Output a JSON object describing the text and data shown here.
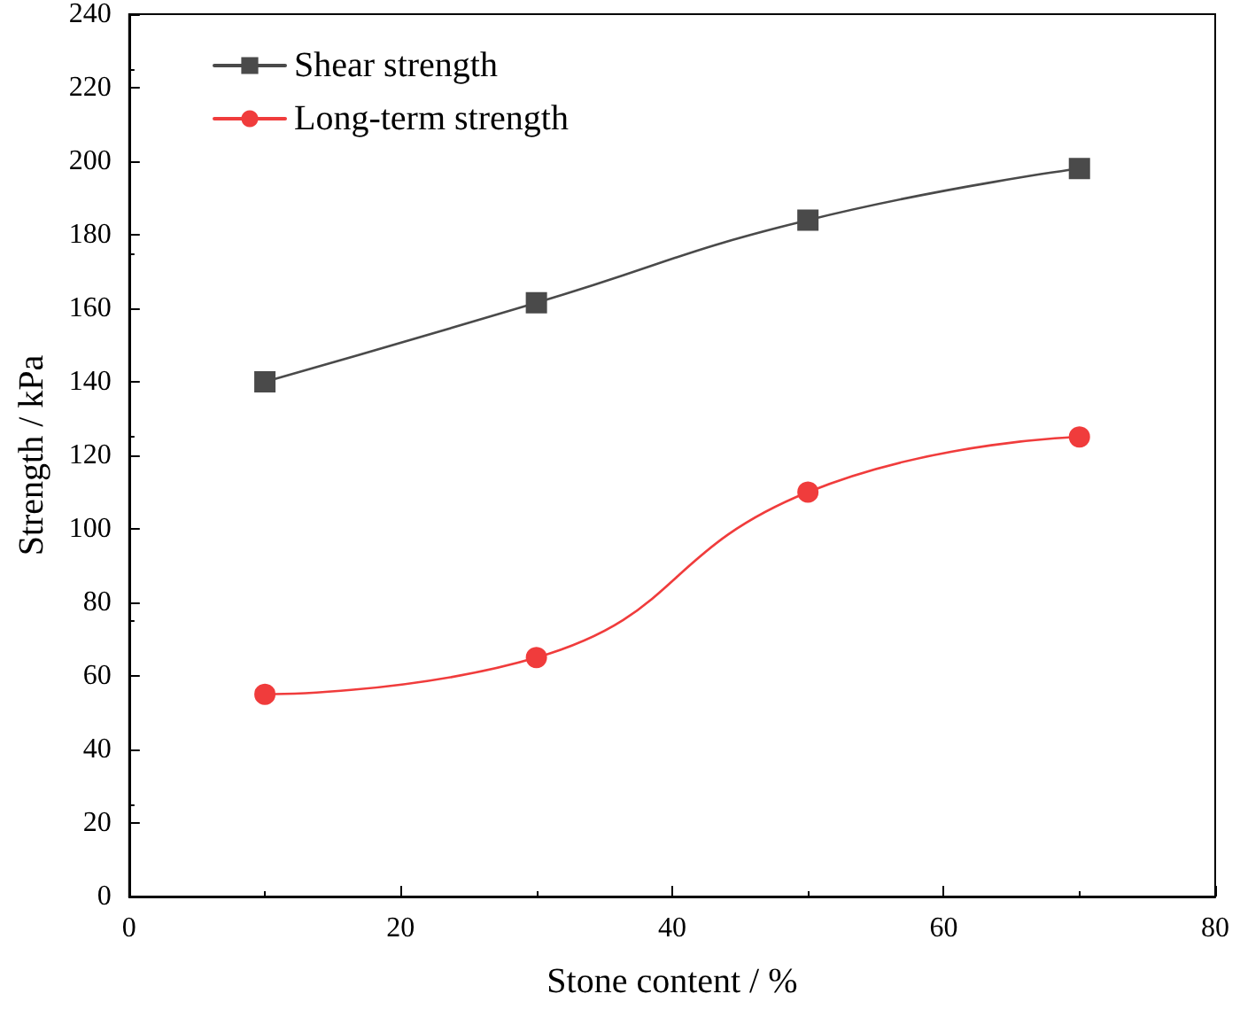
{
  "chart_data": {
    "type": "line",
    "xlabel": "Stone content / %",
    "ylabel": "Strength / kPa",
    "x": [
      10,
      30,
      50,
      70
    ],
    "series": [
      {
        "name": "Shear strength",
        "color": "#4a4a4a",
        "marker": "square",
        "values": [
          140,
          161.5,
          184,
          198
        ]
      },
      {
        "name": "Long-term strength",
        "color": "#f03c3c",
        "marker": "circle",
        "values": [
          55,
          65,
          110,
          125
        ]
      }
    ],
    "xlim": [
      0,
      80
    ],
    "xticks": [
      0,
      20,
      40,
      60,
      80
    ],
    "ylim": [
      0,
      240
    ],
    "yticks": [
      0,
      20,
      40,
      60,
      80,
      100,
      120,
      140,
      160,
      180,
      200,
      220,
      240
    ],
    "grid": false,
    "legend": "top left",
    "line_style": "solid"
  }
}
